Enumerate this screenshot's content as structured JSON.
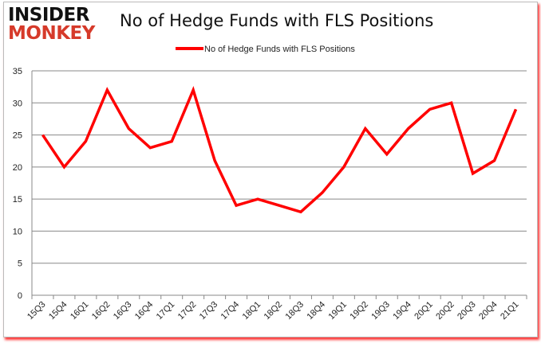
{
  "logo": {
    "line1": "INSIDER",
    "line2": "MONKEY"
  },
  "chart_data": {
    "type": "line",
    "title": "No of Hedge Funds with FLS Positions",
    "legend_position": "top",
    "grid": true,
    "categories": [
      "15Q3",
      "15Q4",
      "16Q1",
      "16Q2",
      "16Q3",
      "16Q4",
      "17Q1",
      "17Q2",
      "17Q3",
      "17Q4",
      "18Q1",
      "18Q2",
      "18Q3",
      "18Q4",
      "19Q1",
      "19Q2",
      "19Q3",
      "19Q4",
      "20Q1",
      "20Q2",
      "20Q3",
      "20Q4",
      "21Q1"
    ],
    "series": [
      {
        "name": "No of Hedge Funds with FLS Positions",
        "color": "#ff0000",
        "values": [
          25,
          20,
          24,
          32,
          26,
          23,
          24,
          32,
          21,
          14,
          15,
          14,
          13,
          16,
          20,
          26,
          22,
          26,
          29,
          30,
          19,
          21,
          29
        ]
      }
    ],
    "ylim": [
      0,
      35
    ],
    "yticks": [
      0,
      5,
      10,
      15,
      20,
      25,
      30,
      35
    ]
  }
}
